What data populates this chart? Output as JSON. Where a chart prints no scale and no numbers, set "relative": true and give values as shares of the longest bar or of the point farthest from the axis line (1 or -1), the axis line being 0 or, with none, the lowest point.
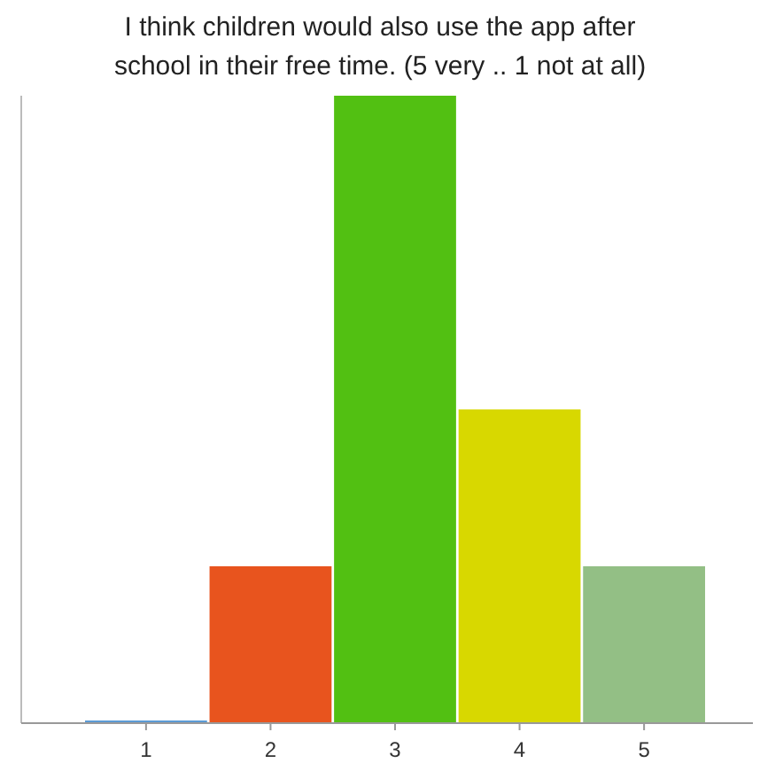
{
  "chart_data": {
    "type": "bar",
    "title": "I think children would also use the app after school in their free time. (5 very .. 1 not at all)",
    "categories": [
      "1",
      "2",
      "3",
      "4",
      "5"
    ],
    "values": [
      0,
      0.25,
      1,
      0.5,
      0.25
    ],
    "colors": [
      "#5b9bd5",
      "#e8541e",
      "#52c012",
      "#d8d800",
      "#93bf85"
    ],
    "relative": true
  }
}
